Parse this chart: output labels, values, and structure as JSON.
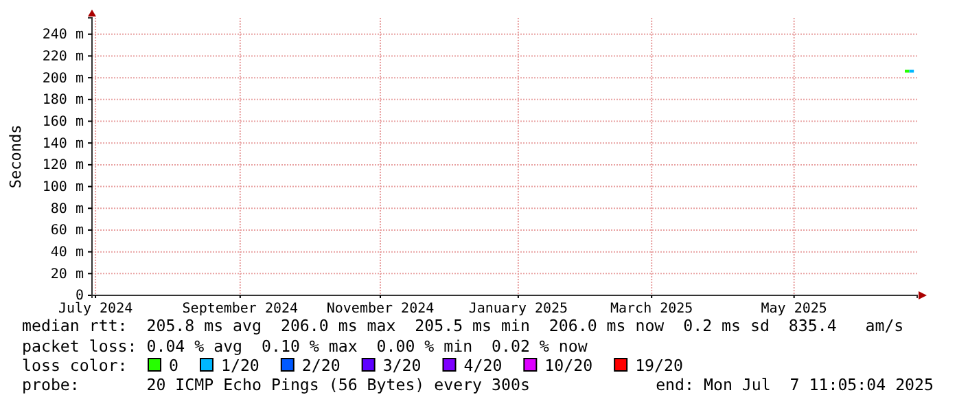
{
  "chart_data": {
    "type": "line",
    "ylabel": "Seconds",
    "xlim": [
      "2024-07-07T11:05",
      "2025-07-07T11:05"
    ],
    "xticks": [
      {
        "value": "2024-07-09",
        "label": "July 2024"
      },
      {
        "value": "2024-09-11",
        "label": "September 2024"
      },
      {
        "value": "2024-11-12",
        "label": "November 2024"
      },
      {
        "value": "2025-01-12",
        "label": "January 2025"
      },
      {
        "value": "2025-03-12",
        "label": "March 2025"
      },
      {
        "value": "2025-05-14",
        "label": "May 2025"
      }
    ],
    "ylim": [
      0,
      255
    ],
    "yticks": [
      0,
      {
        "value": 20,
        "label": "20 m"
      },
      {
        "value": 40,
        "label": "40 m"
      },
      {
        "value": 60,
        "label": "60 m"
      },
      {
        "value": 80,
        "label": "80 m"
      },
      {
        "value": 100,
        "label": "100 m"
      },
      {
        "value": 120,
        "label": "120 m"
      },
      {
        "value": 140,
        "label": "140 m"
      },
      {
        "value": 160,
        "label": "160 m"
      },
      {
        "value": 180,
        "label": "180 m"
      },
      {
        "value": 200,
        "label": "200 m"
      },
      {
        "value": 220,
        "label": "220 m"
      },
      {
        "value": 240,
        "label": "240 m"
      }
    ],
    "grid": true,
    "legend": "bottom",
    "legend_title": "loss color:",
    "series": [
      {
        "name": "0",
        "color": "#26ff00",
        "x": [
          "2025-07-02",
          "2025-07-04"
        ],
        "values": [
          206,
          206
        ]
      },
      {
        "name": "1/20",
        "color": "#00b8ff",
        "x": [
          "2025-07-04",
          "2025-07-06"
        ],
        "values": [
          206,
          206
        ]
      },
      {
        "name": "2/20",
        "color": "#0059ff"
      },
      {
        "name": "3/20",
        "color": "#5e00ff"
      },
      {
        "name": "4/20",
        "color": "#7e00ff"
      },
      {
        "name": "10/20",
        "color": "#dd00ff"
      },
      {
        "name": "19/20",
        "color": "#ff0000"
      }
    ],
    "annotations": [
      "median rtt:  205.8 ms avg  206.0 ms max  205.5 ms min  206.0 ms now  0.2 ms sd  835.4   am/s",
      "packet loss: 0.04 % avg  0.10 % max  0.00 % min  0.02 % now",
      "probe:       20 ICMP Echo Pings (56 Bytes) every 300s",
      "end: Mon Jul  7 11:05:04 2025"
    ]
  }
}
